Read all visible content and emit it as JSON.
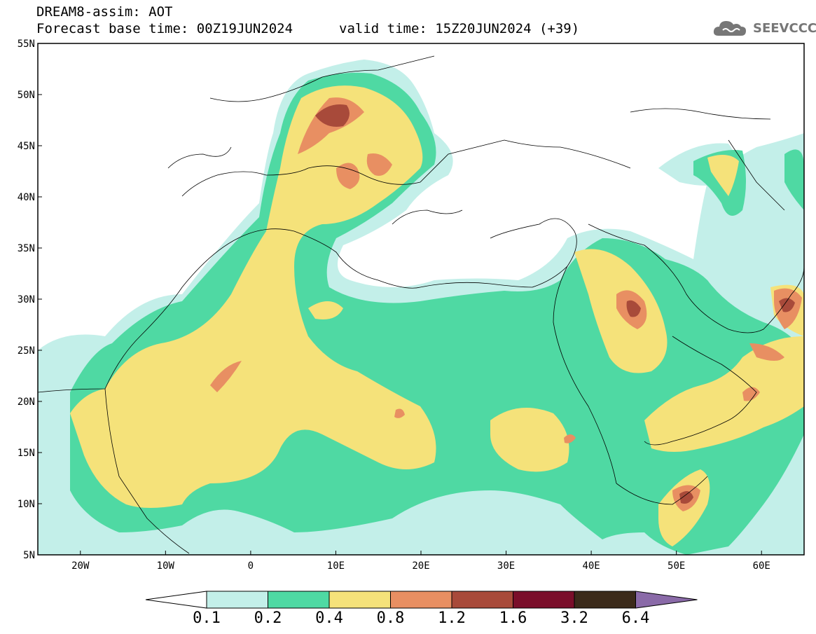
{
  "header": {
    "title": "DREAM8-assim: AOT",
    "base_time": "Forecast base time: 00Z19JUN2024",
    "valid_time": "valid time: 15Z20JUN2024 (+39)"
  },
  "logo": {
    "text": "SEEVCCC",
    "icon": "cloud-icon"
  },
  "map": {
    "lon_range": [
      -25,
      65
    ],
    "lat_range": [
      5,
      55
    ],
    "lon_ticks": [
      {
        "value": -20,
        "label": "20W"
      },
      {
        "value": -10,
        "label": "10W"
      },
      {
        "value": 0,
        "label": "0"
      },
      {
        "value": 10,
        "label": "10E"
      },
      {
        "value": 20,
        "label": "20E"
      },
      {
        "value": 30,
        "label": "30E"
      },
      {
        "value": 40,
        "label": "40E"
      },
      {
        "value": 50,
        "label": "50E"
      },
      {
        "value": 60,
        "label": "60E"
      }
    ],
    "lat_ticks": [
      {
        "value": 55,
        "label": "55N"
      },
      {
        "value": 50,
        "label": "50N"
      },
      {
        "value": 45,
        "label": "45N"
      },
      {
        "value": 40,
        "label": "40N"
      },
      {
        "value": 35,
        "label": "35N"
      },
      {
        "value": 30,
        "label": "30N"
      },
      {
        "value": 25,
        "label": "25N"
      },
      {
        "value": 20,
        "label": "20N"
      },
      {
        "value": 15,
        "label": "15N"
      },
      {
        "value": 10,
        "label": "10N"
      },
      {
        "value": 5,
        "label": "5N"
      }
    ]
  },
  "colorbar": {
    "levels": [
      "0.1",
      "0.2",
      "0.4",
      "0.8",
      "1.2",
      "1.6",
      "3.2",
      "6.4"
    ],
    "colors": [
      "#c3efe9",
      "#4fd9a3",
      "#f5e27a",
      "#e88f62",
      "#a84a3a",
      "#7a0e2a",
      "#3b2a1a"
    ],
    "under_color": "#ffffff",
    "over_color": "#8a6aa8"
  }
}
